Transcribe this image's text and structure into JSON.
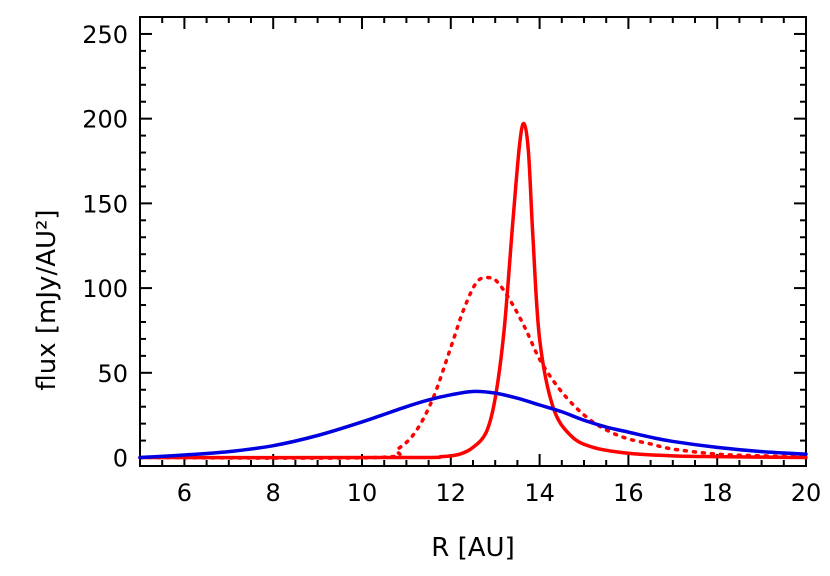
{
  "chart_data": {
    "type": "line",
    "xlabel": "R [AU]",
    "ylabel": "flux [mJy/AU²]",
    "xlim": [
      5,
      20
    ],
    "ylim": [
      -5,
      260
    ],
    "xticks": [
      6,
      8,
      10,
      12,
      14,
      16,
      18,
      20
    ],
    "yticks": [
      0,
      50,
      100,
      150,
      200,
      250
    ],
    "grid": false,
    "series": [
      {
        "color": "#ff0000",
        "style": "solid",
        "x": [
          5,
          11,
          11.8,
          12.2,
          12.5,
          12.8,
          13.0,
          13.2,
          13.4,
          13.55,
          13.65,
          13.75,
          13.85,
          14.0,
          14.3,
          14.7,
          15.2,
          16.0,
          17.0,
          18.0,
          20.0
        ],
        "y": [
          0,
          0,
          0.5,
          2,
          6,
          15,
          35,
          75,
          140,
          185,
          197,
          180,
          130,
          70,
          30,
          13,
          6,
          2.5,
          1,
          0.5,
          0
        ]
      },
      {
        "color": "#ff0000",
        "style": "dotted",
        "x": [
          5,
          10.3,
          10.8,
          11.2,
          11.6,
          12.0,
          12.3,
          12.6,
          12.9,
          13.1,
          13.4,
          13.7,
          14.0,
          14.4,
          14.8,
          15.2,
          15.6,
          16.0,
          16.5,
          17.0,
          18.0,
          19.0,
          20.0
        ],
        "y": [
          0,
          0,
          5,
          15,
          35,
          65,
          88,
          104,
          106,
          102,
          90,
          75,
          58,
          42,
          30,
          21,
          15,
          11,
          8,
          5,
          2,
          1,
          0.5
        ]
      },
      {
        "color": "#0000e0",
        "style": "solid",
        "x": [
          5,
          6,
          7,
          8,
          9,
          10,
          11,
          11.5,
          12,
          12.5,
          13,
          13.5,
          14,
          14.5,
          15,
          15.5,
          16,
          16.5,
          17,
          18,
          19,
          20
        ],
        "y": [
          0,
          1.5,
          3.5,
          7,
          13,
          21,
          30,
          34,
          37,
          39,
          38,
          35,
          31,
          27,
          22,
          18,
          15,
          12,
          9.5,
          6,
          3.5,
          2
        ]
      }
    ]
  }
}
